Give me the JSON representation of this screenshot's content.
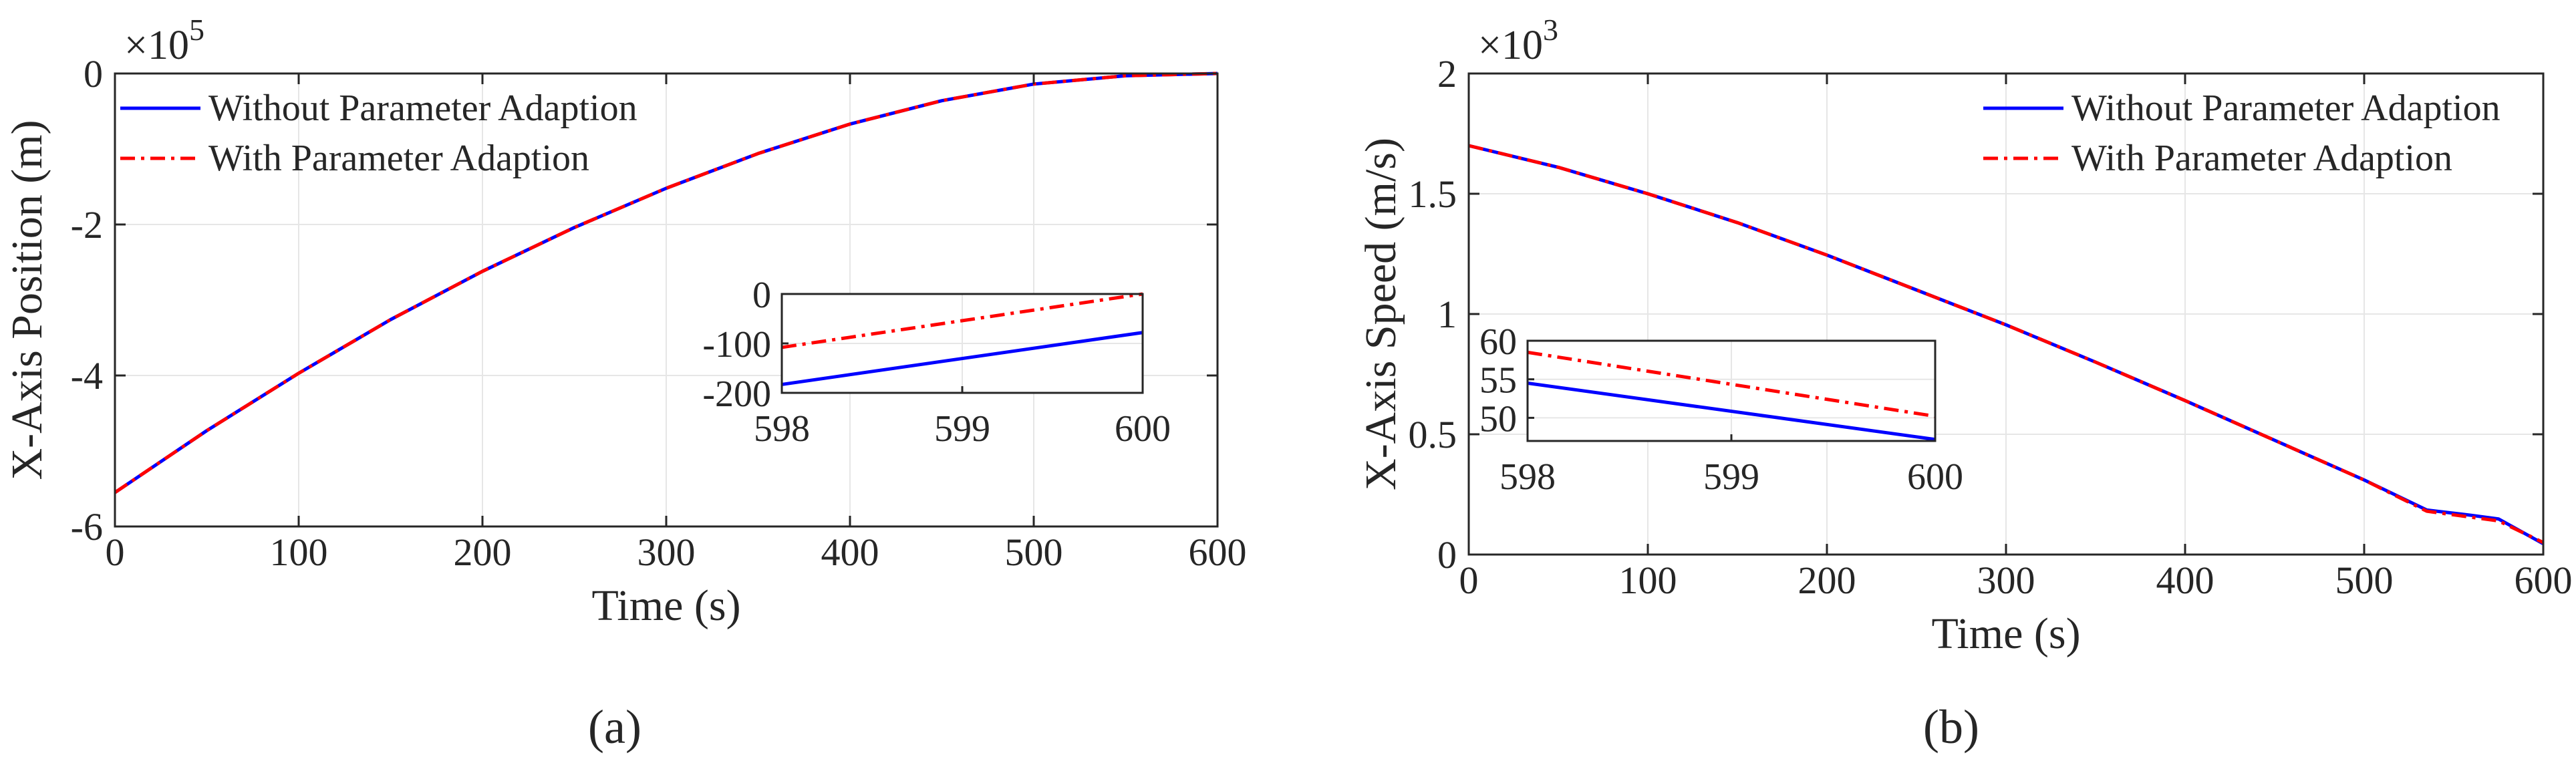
{
  "figure": {
    "panel_labels": [
      "(a)",
      "(b)"
    ]
  },
  "colors": {
    "without": "#0000ff",
    "with": "#ff0000",
    "axis": "#262626",
    "grid": "#e6e6e6"
  },
  "chart_data": [
    {
      "type": "line",
      "panel": "a",
      "caption": "(a)",
      "title": "",
      "xlabel": "Time (s)",
      "ylabel": "X-Axis Position (m)",
      "exponent_label": "×10",
      "exponent_power": "5",
      "xlim": [
        0,
        600
      ],
      "ylim": [
        -6,
        0
      ],
      "xticks": [
        0,
        100,
        200,
        300,
        400,
        500,
        600
      ],
      "yticks": [
        -6,
        -4,
        -2,
        0
      ],
      "xtick_labels": [
        "0",
        "100",
        "200",
        "300",
        "400",
        "500",
        "600"
      ],
      "ytick_labels": [
        "-6",
        "-4",
        "-2",
        "0"
      ],
      "grid": true,
      "legend_position": "top-left",
      "x": [
        0,
        50,
        100,
        150,
        200,
        250,
        300,
        350,
        400,
        450,
        500,
        550,
        600
      ],
      "series": [
        {
          "name": "Without Parameter Adaption",
          "style": "solid",
          "values": [
            -5.55,
            -4.73,
            -3.97,
            -3.26,
            -2.62,
            -2.04,
            -1.52,
            -1.06,
            -0.67,
            -0.36,
            -0.14,
            -0.03,
            0.0
          ]
        },
        {
          "name": "With Parameter Adaption",
          "style": "dashdot",
          "values": [
            -5.55,
            -4.73,
            -3.97,
            -3.26,
            -2.62,
            -2.04,
            -1.52,
            -1.06,
            -0.67,
            -0.36,
            -0.14,
            -0.03,
            0.0
          ]
        }
      ],
      "inset": {
        "xlim": [
          598,
          600
        ],
        "ylim": [
          -200,
          0
        ],
        "xticks": [
          598,
          599,
          600
        ],
        "yticks": [
          -200,
          -100,
          0
        ],
        "xtick_labels": [
          "598",
          "599",
          "600"
        ],
        "ytick_labels": [
          "-200",
          "-100",
          "0"
        ],
        "x": [
          598,
          600
        ],
        "series": [
          {
            "name": "Without Parameter Adaption",
            "style": "solid",
            "values": [
              -183,
              -78
            ]
          },
          {
            "name": "With Parameter Adaption",
            "style": "dashdot",
            "values": [
              -108,
              0
            ]
          }
        ]
      }
    },
    {
      "type": "line",
      "panel": "b",
      "caption": "(b)",
      "title": "",
      "xlabel": "Time (s)",
      "ylabel": "X-Axis Speed (m/s)",
      "exponent_label": "×10",
      "exponent_power": "3",
      "xlim": [
        0,
        600
      ],
      "ylim": [
        0,
        2
      ],
      "xticks": [
        0,
        100,
        200,
        300,
        400,
        500,
        600
      ],
      "yticks": [
        0,
        0.5,
        1,
        1.5,
        2
      ],
      "xtick_labels": [
        "0",
        "100",
        "200",
        "300",
        "400",
        "500",
        "600"
      ],
      "ytick_labels": [
        "0",
        "0.5",
        "1",
        "1.5",
        "2"
      ],
      "grid": true,
      "legend_position": "top-right",
      "x": [
        0,
        50,
        100,
        150,
        200,
        250,
        300,
        350,
        400,
        450,
        500,
        535,
        560,
        575,
        600
      ],
      "series": [
        {
          "name": "Without Parameter Adaption",
          "style": "solid",
          "values": [
            1.7,
            1.61,
            1.5,
            1.38,
            1.245,
            1.1,
            0.955,
            0.8,
            0.64,
            0.475,
            0.31,
            0.185,
            0.163,
            0.148,
            0.045
          ]
        },
        {
          "name": "With Parameter Adaption",
          "style": "dashdot",
          "values": [
            1.7,
            1.61,
            1.5,
            1.38,
            1.245,
            1.1,
            0.955,
            0.8,
            0.64,
            0.475,
            0.31,
            0.18,
            0.155,
            0.14,
            0.05
          ]
        }
      ],
      "inset": {
        "xlim": [
          598,
          600
        ],
        "ylim": [
          47,
          60
        ],
        "xticks": [
          598,
          599,
          600
        ],
        "yticks": [
          50,
          55,
          60
        ],
        "xtick_labels": [
          "598",
          "599",
          "600"
        ],
        "ytick_labels": [
          "50",
          "55",
          "60"
        ],
        "x": [
          598,
          600
        ],
        "series": [
          {
            "name": "Without Parameter Adaption",
            "style": "solid",
            "values": [
              54.5,
              47.2
            ]
          },
          {
            "name": "With Parameter Adaption",
            "style": "dashdot",
            "values": [
              58.5,
              50.2
            ]
          }
        ]
      }
    }
  ]
}
